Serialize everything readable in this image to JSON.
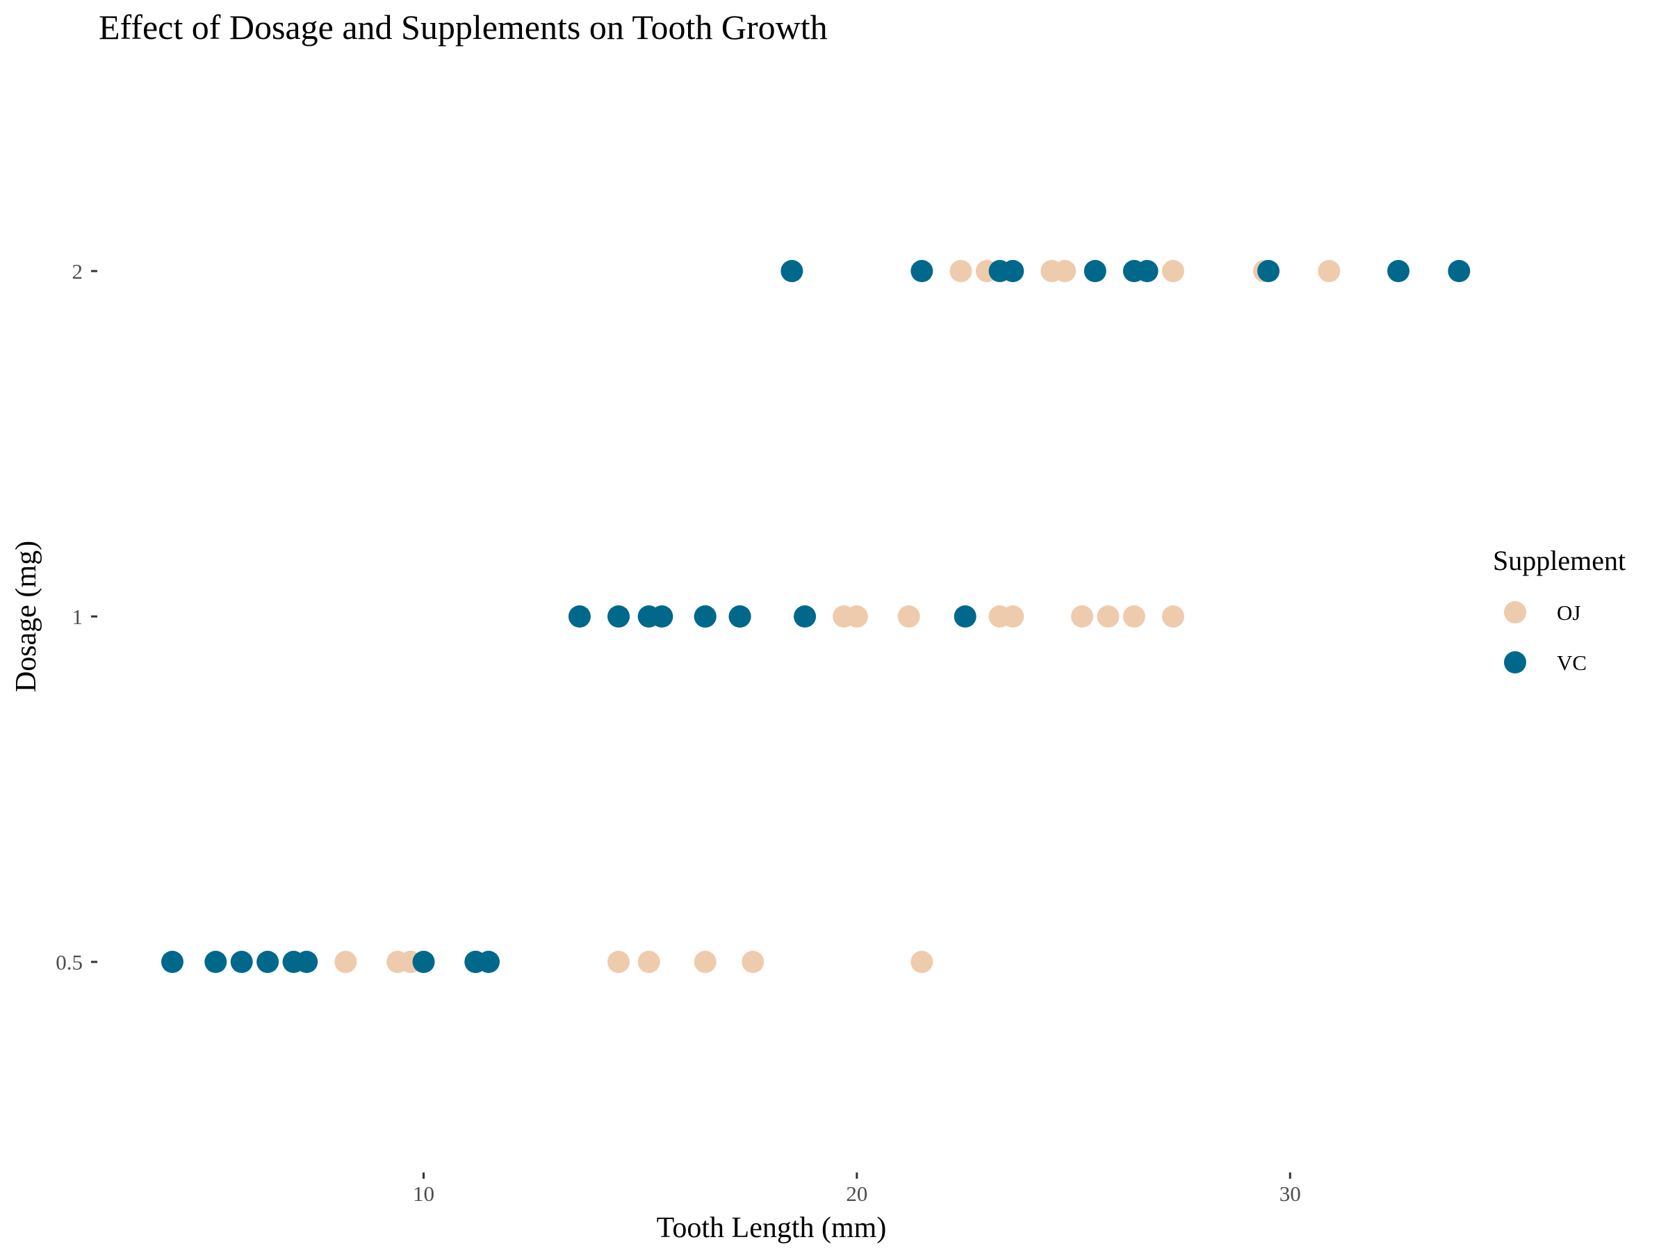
{
  "chart_data": {
    "type": "scatter",
    "title": "Effect of Dosage and Supplements on Tooth Growth",
    "xlabel": "Tooth Length (mm)",
    "ylabel": "Dosage (mg)",
    "xlim": [
      2.5,
      37.6
    ],
    "x_ticks": [
      10,
      20,
      30
    ],
    "y_categories": [
      "0.5",
      "1",
      "2"
    ],
    "grid": false,
    "legend": {
      "title": "Supplement",
      "position": "right"
    },
    "series": [
      {
        "name": "OJ",
        "color": "#EECBAD",
        "points": [
          {
            "x": 15.2,
            "y": "0.5"
          },
          {
            "x": 21.5,
            "y": "0.5"
          },
          {
            "x": 17.6,
            "y": "0.5"
          },
          {
            "x": 9.7,
            "y": "0.5"
          },
          {
            "x": 14.5,
            "y": "0.5"
          },
          {
            "x": 10.0,
            "y": "0.5"
          },
          {
            "x": 8.2,
            "y": "0.5"
          },
          {
            "x": 9.4,
            "y": "0.5"
          },
          {
            "x": 16.5,
            "y": "0.5"
          },
          {
            "x": 9.7,
            "y": "0.5"
          },
          {
            "x": 19.7,
            "y": "1"
          },
          {
            "x": 23.3,
            "y": "1"
          },
          {
            "x": 23.6,
            "y": "1"
          },
          {
            "x": 26.4,
            "y": "1"
          },
          {
            "x": 20.0,
            "y": "1"
          },
          {
            "x": 25.2,
            "y": "1"
          },
          {
            "x": 25.8,
            "y": "1"
          },
          {
            "x": 21.2,
            "y": "1"
          },
          {
            "x": 14.5,
            "y": "1"
          },
          {
            "x": 27.3,
            "y": "1"
          },
          {
            "x": 25.5,
            "y": "2"
          },
          {
            "x": 26.4,
            "y": "2"
          },
          {
            "x": 22.4,
            "y": "2"
          },
          {
            "x": 24.5,
            "y": "2"
          },
          {
            "x": 24.8,
            "y": "2"
          },
          {
            "x": 30.9,
            "y": "2"
          },
          {
            "x": 26.4,
            "y": "2"
          },
          {
            "x": 27.3,
            "y": "2"
          },
          {
            "x": 29.4,
            "y": "2"
          },
          {
            "x": 23.0,
            "y": "2"
          }
        ]
      },
      {
        "name": "VC",
        "color": "#00688B",
        "points": [
          {
            "x": 4.2,
            "y": "0.5"
          },
          {
            "x": 11.5,
            "y": "0.5"
          },
          {
            "x": 7.3,
            "y": "0.5"
          },
          {
            "x": 5.8,
            "y": "0.5"
          },
          {
            "x": 6.4,
            "y": "0.5"
          },
          {
            "x": 10.0,
            "y": "0.5"
          },
          {
            "x": 11.2,
            "y": "0.5"
          },
          {
            "x": 11.2,
            "y": "0.5"
          },
          {
            "x": 5.2,
            "y": "0.5"
          },
          {
            "x": 7.0,
            "y": "0.5"
          },
          {
            "x": 16.5,
            "y": "1"
          },
          {
            "x": 16.5,
            "y": "1"
          },
          {
            "x": 15.2,
            "y": "1"
          },
          {
            "x": 17.3,
            "y": "1"
          },
          {
            "x": 22.5,
            "y": "1"
          },
          {
            "x": 17.3,
            "y": "1"
          },
          {
            "x": 13.6,
            "y": "1"
          },
          {
            "x": 14.5,
            "y": "1"
          },
          {
            "x": 18.8,
            "y": "1"
          },
          {
            "x": 15.5,
            "y": "1"
          },
          {
            "x": 23.6,
            "y": "2"
          },
          {
            "x": 18.5,
            "y": "2"
          },
          {
            "x": 33.9,
            "y": "2"
          },
          {
            "x": 25.5,
            "y": "2"
          },
          {
            "x": 26.4,
            "y": "2"
          },
          {
            "x": 32.5,
            "y": "2"
          },
          {
            "x": 26.7,
            "y": "2"
          },
          {
            "x": 21.5,
            "y": "2"
          },
          {
            "x": 23.3,
            "y": "2"
          },
          {
            "x": 29.5,
            "y": "2"
          }
        ]
      }
    ]
  }
}
